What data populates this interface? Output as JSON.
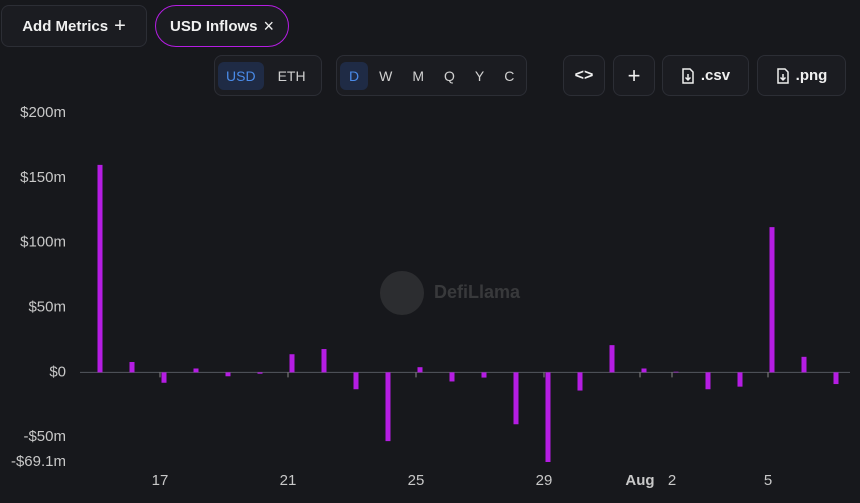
{
  "toolbar": {
    "add_metrics": "Add Metrics",
    "metric": "USD Inflows",
    "currencies": [
      "USD",
      "ETH"
    ],
    "periods": [
      "D",
      "W",
      "M",
      "Q",
      "Y",
      "C"
    ],
    "csv": ".csv",
    "png": ".png"
  },
  "watermark": "DefiLlama",
  "chart_data": {
    "type": "bar",
    "color": "#b51de3",
    "categories": [
      null,
      null,
      "17",
      null,
      null,
      null,
      "21",
      null,
      null,
      null,
      "25",
      null,
      null,
      null,
      "29",
      null,
      null,
      "Aug",
      "2",
      null,
      null,
      "5",
      null,
      null
    ],
    "values": [
      160,
      8,
      -8,
      3,
      -3,
      -1,
      14,
      18,
      -13,
      -53,
      4,
      -7,
      -4,
      -40,
      -69.1,
      -14,
      21,
      3,
      0.5,
      -13,
      -11,
      112,
      12,
      -9
    ],
    "ylim": [
      -69.1,
      200
    ],
    "yticks": [
      {
        "value": 200,
        "label": "$200m"
      },
      {
        "value": 150,
        "label": "$150m"
      },
      {
        "value": 100,
        "label": "$100m"
      },
      {
        "value": 50,
        "label": "$50m"
      },
      {
        "value": 0,
        "label": "$0"
      },
      {
        "value": -50,
        "label": "-$50m"
      },
      {
        "value": -69.1,
        "label": "-$69.1m"
      }
    ]
  }
}
